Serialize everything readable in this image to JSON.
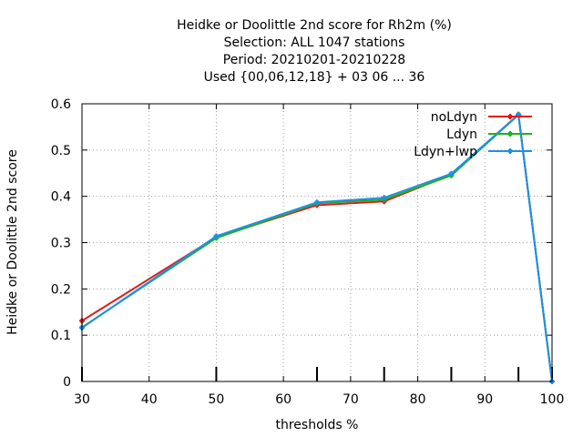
{
  "chart_data": {
    "type": "line",
    "title": [
      "Heidke or Doolittle 2nd score  for Rh2m (%)",
      "Selection: ALL   1047 stations",
      "Period: 20210201-20210228",
      "Used {00,06,12,18} + 03 06 ... 36"
    ],
    "xlabel": "thresholds %",
    "ylabel": "Heidke or Doolittle 2nd score",
    "xlim": [
      30,
      100
    ],
    "ylim": [
      0,
      0.6
    ],
    "xticks": [
      "30",
      "40",
      "50",
      "60",
      "70",
      "80",
      "90",
      "100"
    ],
    "yticks": [
      "0",
      "0.1",
      "0.2",
      "0.3",
      "0.4",
      "0.5",
      "0.6"
    ],
    "grid": true,
    "legend_position": "top-right",
    "threshold_markers": [
      30,
      50,
      65,
      75,
      85,
      95,
      100
    ],
    "series": [
      {
        "name": "noLdyn",
        "color": "#e31a1c",
        "x": [
          30,
          50,
          65,
          75,
          85,
          95,
          100
        ],
        "y": [
          0.131,
          0.312,
          0.381,
          0.389,
          0.447,
          0.577,
          0.0
        ]
      },
      {
        "name": "Ldyn",
        "color": "#1fb21f",
        "x": [
          30,
          50,
          65,
          75,
          85,
          95,
          100
        ],
        "y": [
          0.117,
          0.31,
          0.385,
          0.393,
          0.445,
          0.576,
          0.0
        ]
      },
      {
        "name": "Ldyn+lwp",
        "color": "#1e90e6",
        "x": [
          30,
          50,
          65,
          75,
          85,
          95,
          100
        ],
        "y": [
          0.116,
          0.314,
          0.387,
          0.397,
          0.449,
          0.576,
          0.0
        ]
      }
    ]
  }
}
